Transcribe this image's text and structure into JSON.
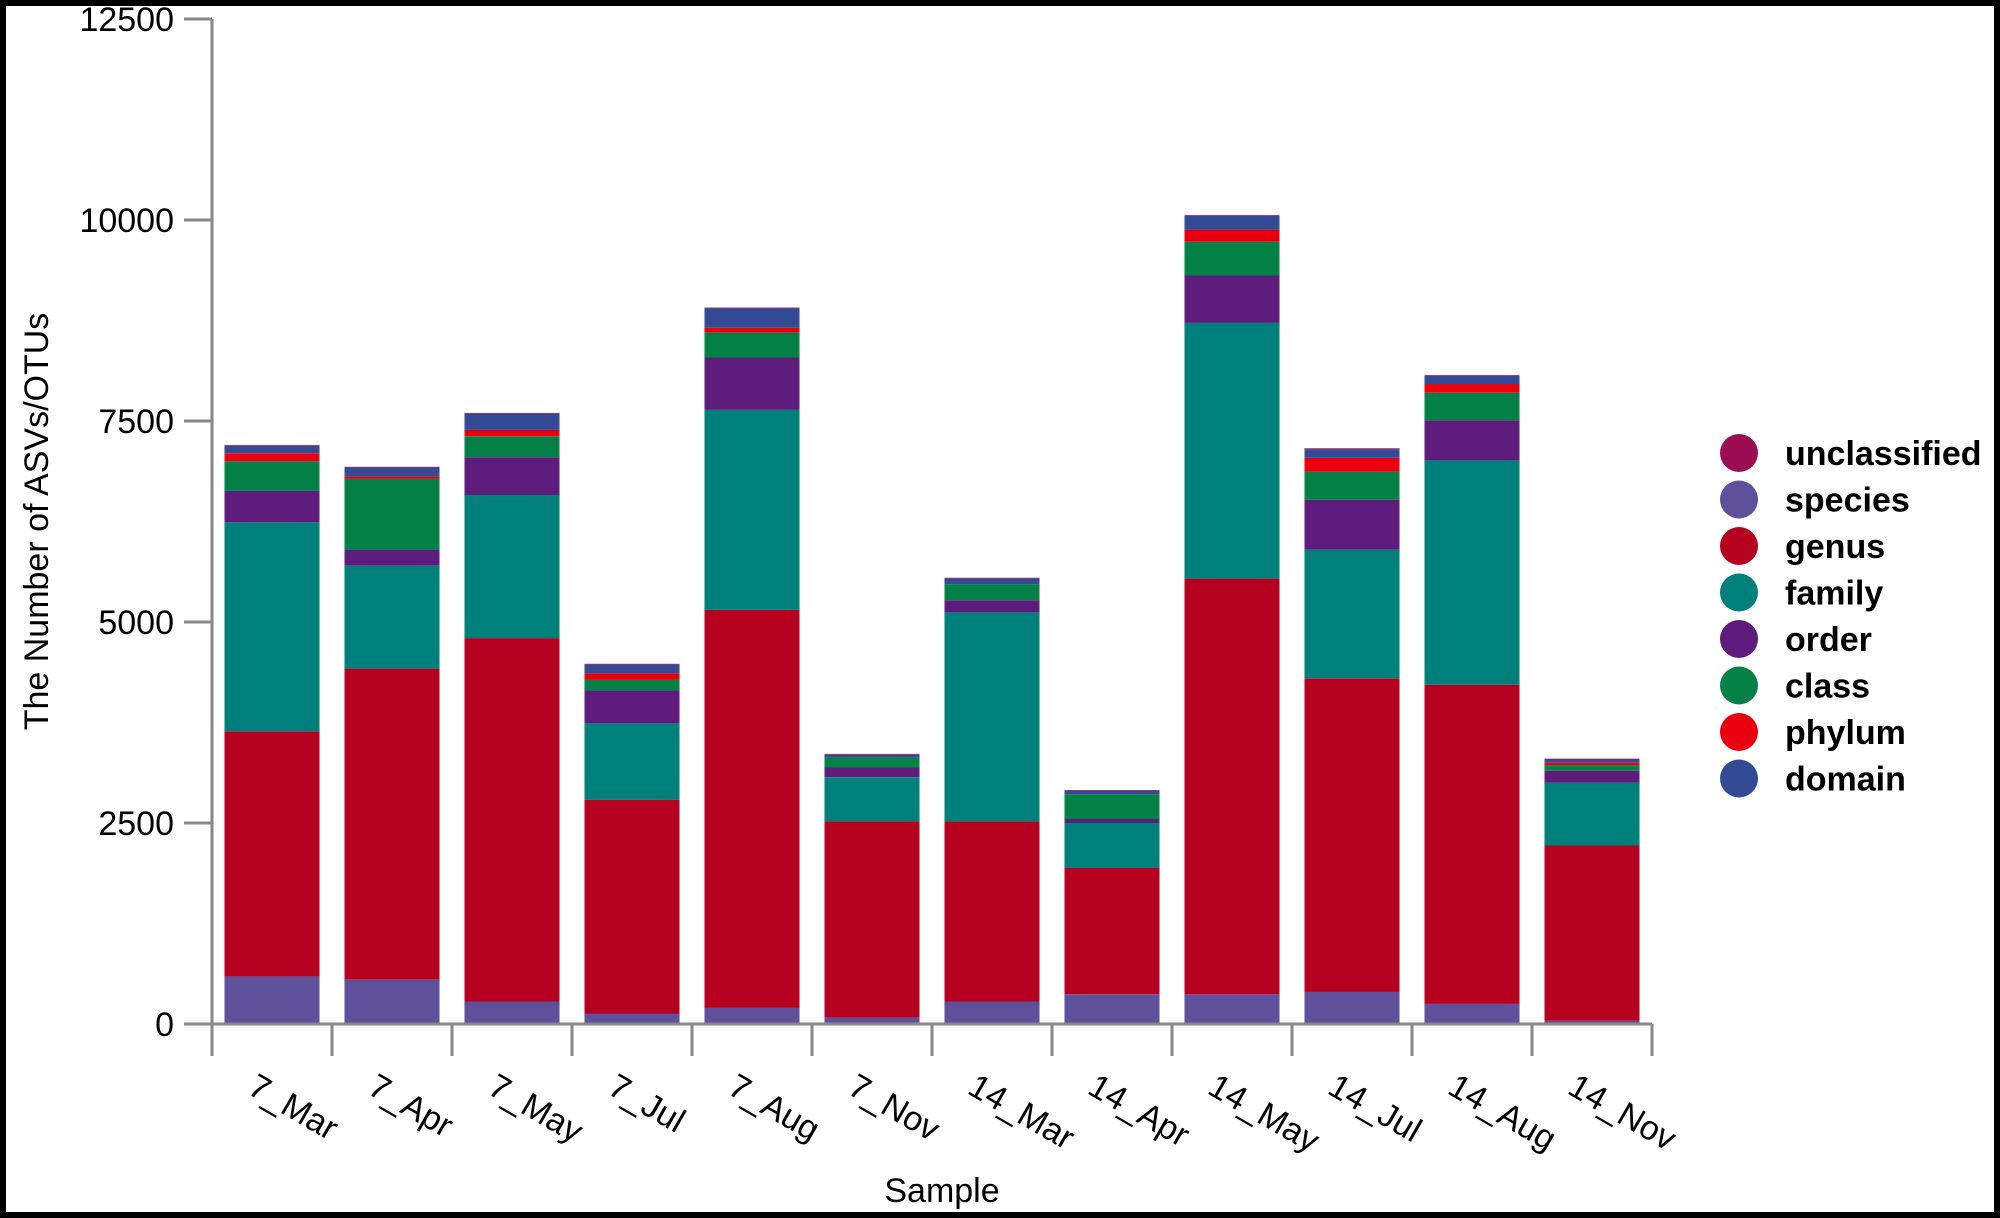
{
  "chart_data": {
    "type": "bar",
    "stacked": true,
    "title": "",
    "xlabel": "Sample",
    "ylabel": "The Number of ASVs/OTUs",
    "ylim": [
      0,
      12500
    ],
    "yticks": [
      0,
      2500,
      5000,
      7500,
      10000,
      12500
    ],
    "grid": false,
    "legend_position": "right",
    "categories": [
      "7_Mar",
      "7_Apr",
      "7_May",
      "7_Jul",
      "7_Aug",
      "7_Nov",
      "14_Mar",
      "14_Apr",
      "14_May",
      "14_Jul",
      "14_Aug",
      "14_Nov"
    ],
    "series": [
      {
        "name": "species",
        "color": "#5e509a",
        "values": [
          590,
          550,
          280,
          130,
          200,
          80,
          280,
          370,
          370,
          400,
          250,
          40
        ]
      },
      {
        "name": "genus",
        "color": "#b5001f",
        "values": [
          3050,
          3870,
          4520,
          2660,
          4950,
          2440,
          2240,
          1570,
          5170,
          3900,
          3970,
          2180
        ]
      },
      {
        "name": "family",
        "color": "#00807a",
        "values": [
          2600,
          1280,
          1780,
          950,
          2490,
          550,
          2600,
          560,
          3180,
          1600,
          2790,
          780
        ]
      },
      {
        "name": "order",
        "color": "#5d1b7c",
        "values": [
          390,
          200,
          470,
          410,
          650,
          120,
          150,
          50,
          590,
          620,
          500,
          150
        ]
      },
      {
        "name": "class",
        "color": "#038146",
        "values": [
          370,
          880,
          260,
          130,
          310,
          130,
          200,
          310,
          420,
          350,
          340,
          70
        ]
      },
      {
        "name": "phylum",
        "color": "#e8000e",
        "values": [
          100,
          30,
          80,
          80,
          60,
          0,
          0,
          0,
          150,
          170,
          110,
          30
        ]
      },
      {
        "name": "domain",
        "color": "#334b94",
        "values": [
          90,
          110,
          200,
          110,
          240,
          30,
          70,
          40,
          170,
          110,
          100,
          40
        ]
      },
      {
        "name": "unclassified",
        "color": "#9c0e54",
        "values": [
          10,
          10,
          10,
          10,
          10,
          10,
          10,
          10,
          10,
          10,
          10,
          10
        ]
      }
    ],
    "legend": [
      "unclassified",
      "species",
      "genus",
      "family",
      "order",
      "class",
      "phylum",
      "domain"
    ],
    "axis_color": "#888888"
  }
}
